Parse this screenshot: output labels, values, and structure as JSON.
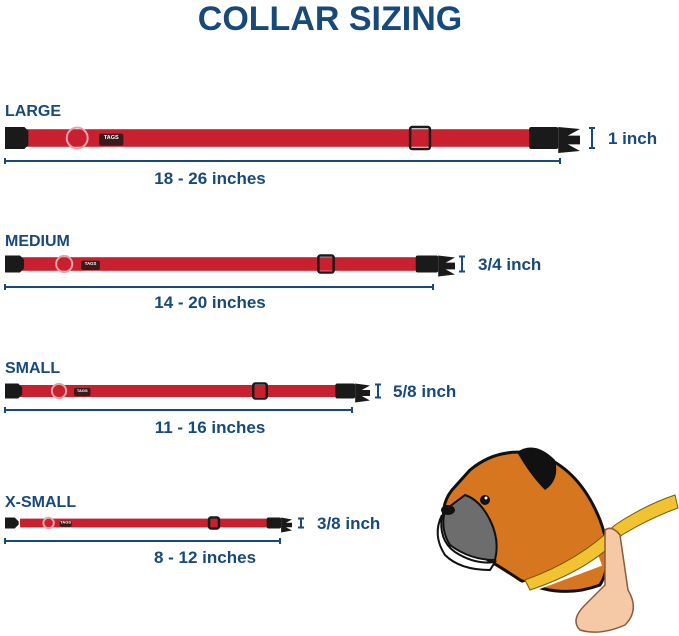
{
  "title": "COLLAR SIZING",
  "brand_tag": "TAGS",
  "colors": {
    "title": "#17497a",
    "collar": "#c9202f",
    "buckle": "#1a1a1a"
  },
  "sizes": [
    {
      "label": "LARGE",
      "range": "18 - 26 inches",
      "width": "1 inch"
    },
    {
      "label": "MEDIUM",
      "range": "14 - 20 inches",
      "width": "3/4 inch"
    },
    {
      "label": "SMALL",
      "range": "11 - 16 inches",
      "width": "5/8 inch"
    },
    {
      "label": "X-SMALL",
      "range": "8 - 12 inches",
      "width": "3/8 inch"
    }
  ],
  "illustration": "dog-neck-measuring-tape"
}
